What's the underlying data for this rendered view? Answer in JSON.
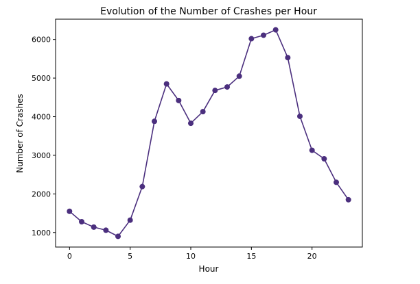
{
  "chart_data": {
    "type": "line",
    "title": "Evolution of the Number of Crashes per Hour",
    "xlabel": "Hour",
    "ylabel": "Number of Crashes",
    "x": [
      0,
      1,
      2,
      3,
      4,
      5,
      6,
      7,
      8,
      9,
      10,
      11,
      12,
      13,
      14,
      15,
      16,
      17,
      18,
      19,
      20,
      21,
      22,
      23
    ],
    "series": [
      {
        "values": [
          1550,
          1280,
          1140,
          1060,
          900,
          1320,
          2190,
          3880,
          4850,
          4420,
          3830,
          4130,
          4680,
          4770,
          5050,
          6020,
          6110,
          6250,
          5530,
          4010,
          3130,
          2910,
          2300,
          1850
        ],
        "color": "#4b2f7e"
      }
    ],
    "xlim": [
      -1.15,
      24.15
    ],
    "ylim": [
      624,
      6526
    ],
    "xticks": [
      "0",
      "5",
      "10",
      "15",
      "20"
    ],
    "yticks": [
      "1000",
      "2000",
      "3000",
      "4000",
      "5000",
      "6000"
    ],
    "grid": false,
    "legend": "none"
  }
}
